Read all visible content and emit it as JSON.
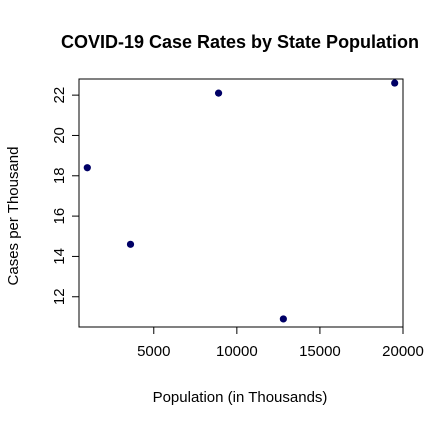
{
  "chart_data": {
    "type": "scatter",
    "title": "COVID-19 Case Rates by State Population",
    "xlabel": "Population (in Thousands)",
    "ylabel": "Cases per Thousand",
    "xlim": [
      500,
      20000
    ],
    "ylim": [
      10.5,
      22.8
    ],
    "x_ticks": [
      5000,
      10000,
      15000,
      20000
    ],
    "y_ticks": [
      12,
      14,
      16,
      18,
      20,
      22
    ],
    "grid": false,
    "legend": "none",
    "point_color": "#000066",
    "points": [
      {
        "x": 1000,
        "y": 18.4
      },
      {
        "x": 3600,
        "y": 14.6
      },
      {
        "x": 8900,
        "y": 22.1
      },
      {
        "x": 12800,
        "y": 10.9
      },
      {
        "x": 19500,
        "y": 22.6
      }
    ]
  }
}
